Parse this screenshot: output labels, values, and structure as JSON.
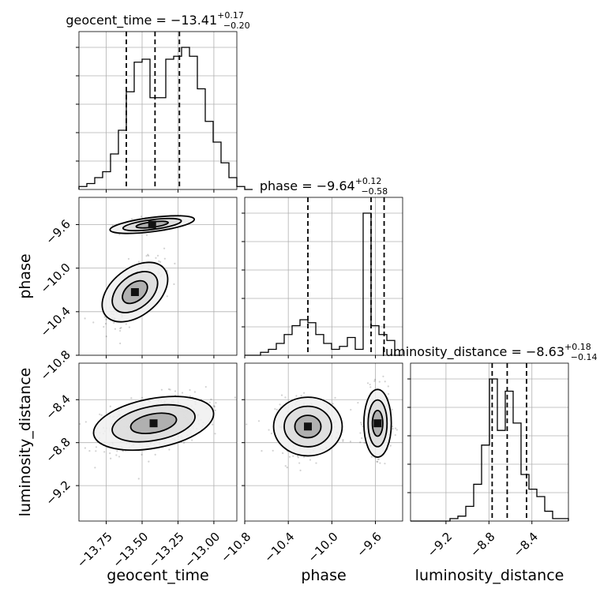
{
  "chart_data": {
    "type": "corner",
    "parameters": [
      "geocent_time",
      "phase",
      "luminosity_distance"
    ],
    "axis_labels": {
      "geocent_time": "geocent_time",
      "phase": "phase",
      "luminosity_distance": "luminosity_distance"
    },
    "titles": {
      "geocent_time": {
        "prefix": "geocent_time = ",
        "value": "−13.41",
        "plus": "+0.17",
        "minus": "−0.20"
      },
      "phase": {
        "prefix": "phase = ",
        "value": "−9.64",
        "plus": "+0.12",
        "minus": "−0.58"
      },
      "luminosity_distance": {
        "prefix": "luminosity_distance = ",
        "value": "−8.63",
        "plus": "+0.18",
        "minus": "−0.14"
      }
    },
    "ranges": {
      "geocent_time": [
        -13.94,
        -12.84
      ],
      "phase": [
        -10.8,
        -9.35
      ],
      "luminosity_distance": [
        -9.53,
        -8.06
      ]
    },
    "ticks": {
      "geocent_time": {
        "values": [
          -13.75,
          -13.5,
          -13.25,
          -13.0
        ],
        "labels": [
          "−13.75",
          "−13.50",
          "−13.25",
          "−13.00"
        ]
      },
      "phase": {
        "values": [
          -10.8,
          -10.4,
          -10.0,
          -9.6
        ],
        "labels": [
          "−10.8",
          "−10.4",
          "−10.0",
          "−9.6"
        ]
      },
      "luminosity_distance": {
        "values": [
          -9.2,
          -8.8,
          -8.4
        ],
        "labels": [
          "−9.2",
          "−8.8",
          "−8.4"
        ]
      }
    },
    "quantiles": {
      "geocent_time": [
        -13.61,
        -13.41,
        -13.24
      ],
      "phase": [
        -10.22,
        -9.64,
        -9.52
      ],
      "luminosity_distance": [
        -8.77,
        -8.63,
        -8.45
      ]
    },
    "histograms": {
      "geocent_time": {
        "bin_edges_start": -13.94,
        "bin_width": 0.055,
        "counts": [
          1,
          2,
          4,
          6,
          12,
          20,
          33,
          43,
          44,
          31,
          31,
          44,
          45,
          48,
          45,
          34,
          23,
          16,
          9,
          4,
          1,
          0
        ]
      },
      "phase": {
        "bin_edges_start": -10.8,
        "bin_width": 0.0725,
        "counts": [
          0,
          0,
          1,
          2,
          4,
          7,
          10,
          12,
          11,
          7,
          4,
          2,
          3,
          6,
          2,
          48,
          10,
          7,
          5,
          0
        ]
      },
      "luminosity_distance": {
        "bin_edges_start": -9.53,
        "bin_width": 0.0735,
        "counts": [
          0,
          0,
          0,
          0,
          0,
          1,
          2,
          6,
          15,
          31,
          58,
          37,
          53,
          40,
          19,
          13,
          10,
          4,
          1,
          1
        ]
      }
    },
    "scatter_clusters": [
      {
        "x": "geocent_time",
        "y": "phase",
        "cx": -13.43,
        "cy": -9.6,
        "sx": 0.12,
        "sy": 0.04,
        "rho": 0.5,
        "n": 140
      },
      {
        "x": "geocent_time",
        "y": "phase",
        "cx": -13.55,
        "cy": -10.22,
        "sx": 0.1,
        "sy": 0.15,
        "rho": 0.7,
        "n": 260
      },
      {
        "x": "geocent_time",
        "y": "luminosity_distance",
        "cx": -13.42,
        "cy": -8.62,
        "sx": 0.18,
        "sy": 0.13,
        "rho": 0.35,
        "n": 520
      },
      {
        "x": "phase",
        "y": "luminosity_distance",
        "cx": -10.22,
        "cy": -8.65,
        "sx": 0.15,
        "sy": 0.13,
        "rho": 0.0,
        "n": 240
      },
      {
        "x": "phase",
        "y": "luminosity_distance",
        "cx": -9.58,
        "cy": -8.62,
        "sx": 0.06,
        "sy": 0.15,
        "rho": 0.0,
        "n": 260
      }
    ],
    "grid": true
  }
}
